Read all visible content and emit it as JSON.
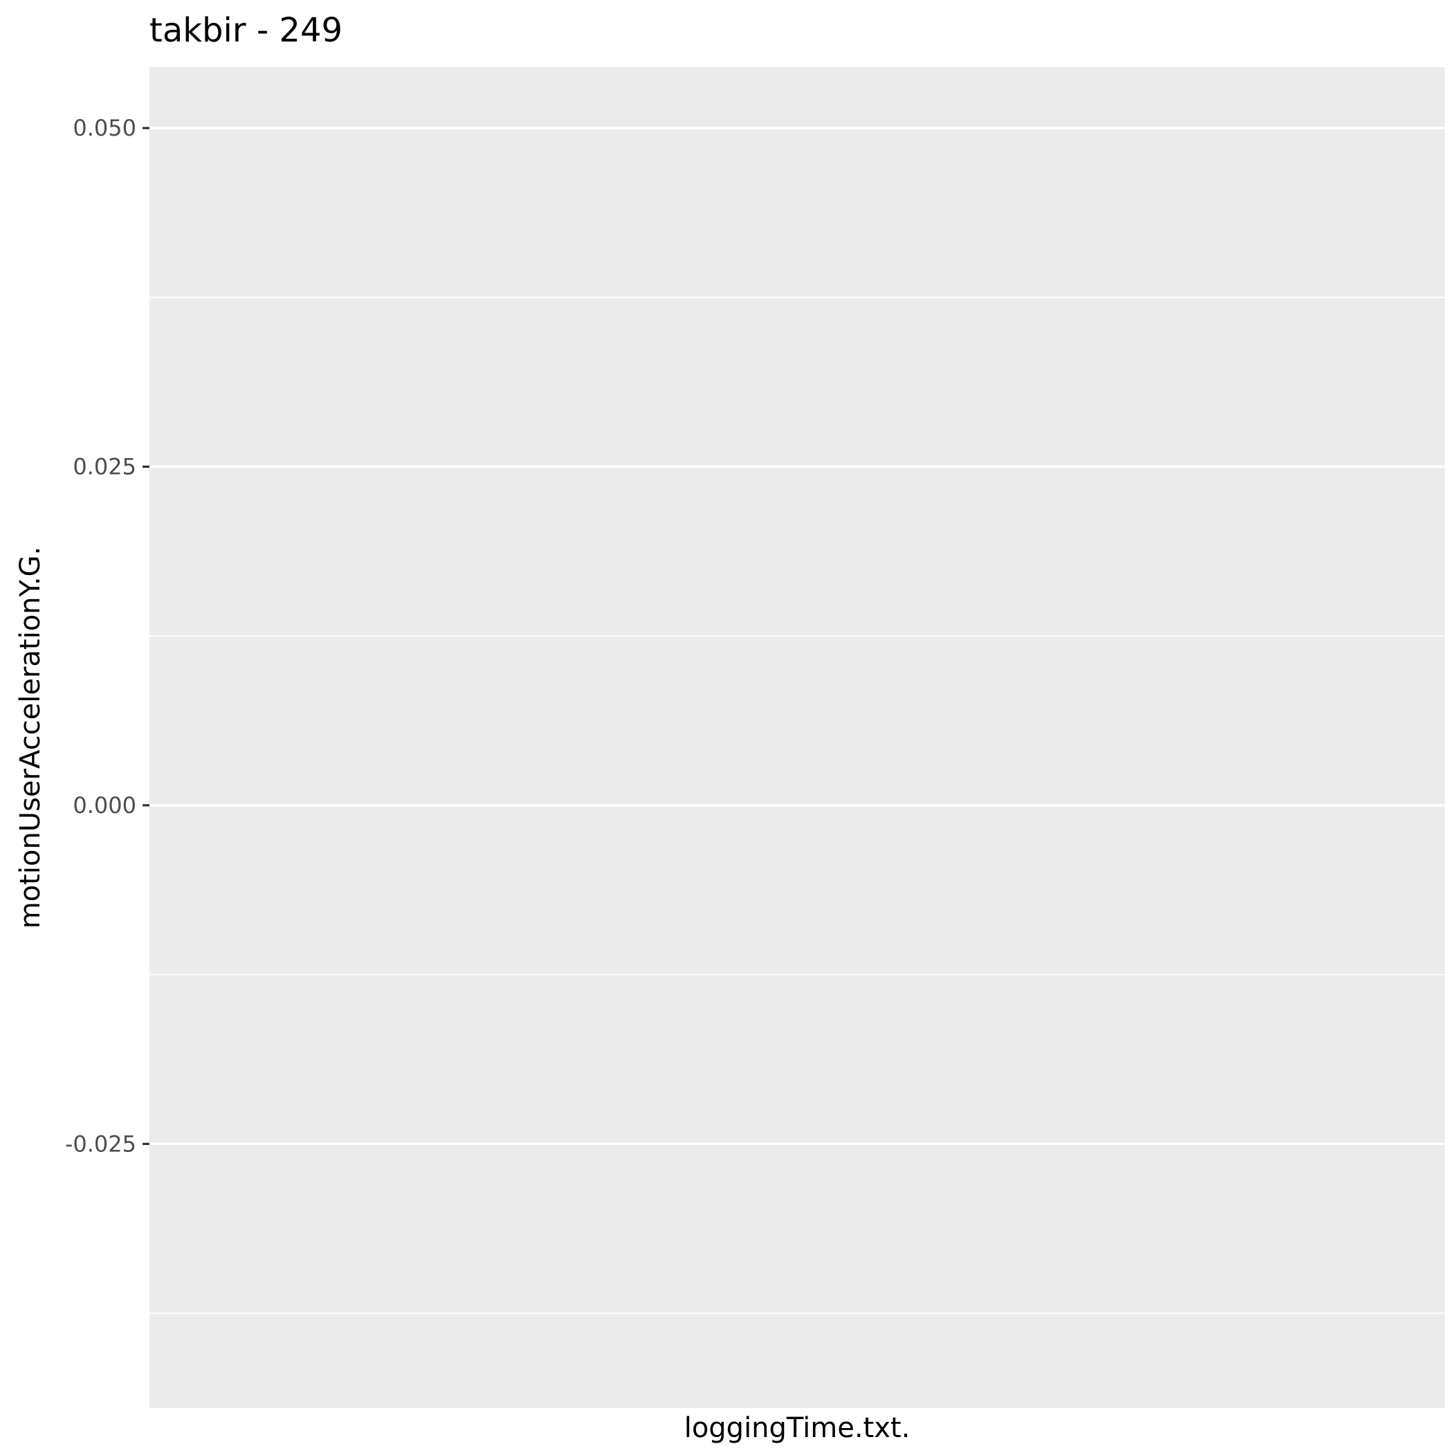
{
  "chart_data": {
    "type": "line",
    "title": "takbir  -  249",
    "xlabel": "loggingTime.txt.",
    "ylabel": "motionUserAccelerationY.G.",
    "ylim": [
      -0.0445,
      0.0545
    ],
    "y_ticks": [
      {
        "value": -0.025,
        "label": "-0.025"
      },
      {
        "value": 0.0,
        "label": "0.000"
      },
      {
        "value": 0.025,
        "label": "0.025"
      },
      {
        "value": 0.05,
        "label": "0.050"
      }
    ],
    "y_minor_gridlines": [
      -0.0375,
      -0.0125,
      0.0125,
      0.0375
    ],
    "x_ticks": [],
    "series": [],
    "grid": true,
    "legend": "none",
    "colors": {
      "panel_background": "#ebebeb",
      "gridline": "#ffffff",
      "tick_mark": "#333333",
      "tick_label": "#4d4d4d",
      "text": "#000000"
    }
  }
}
